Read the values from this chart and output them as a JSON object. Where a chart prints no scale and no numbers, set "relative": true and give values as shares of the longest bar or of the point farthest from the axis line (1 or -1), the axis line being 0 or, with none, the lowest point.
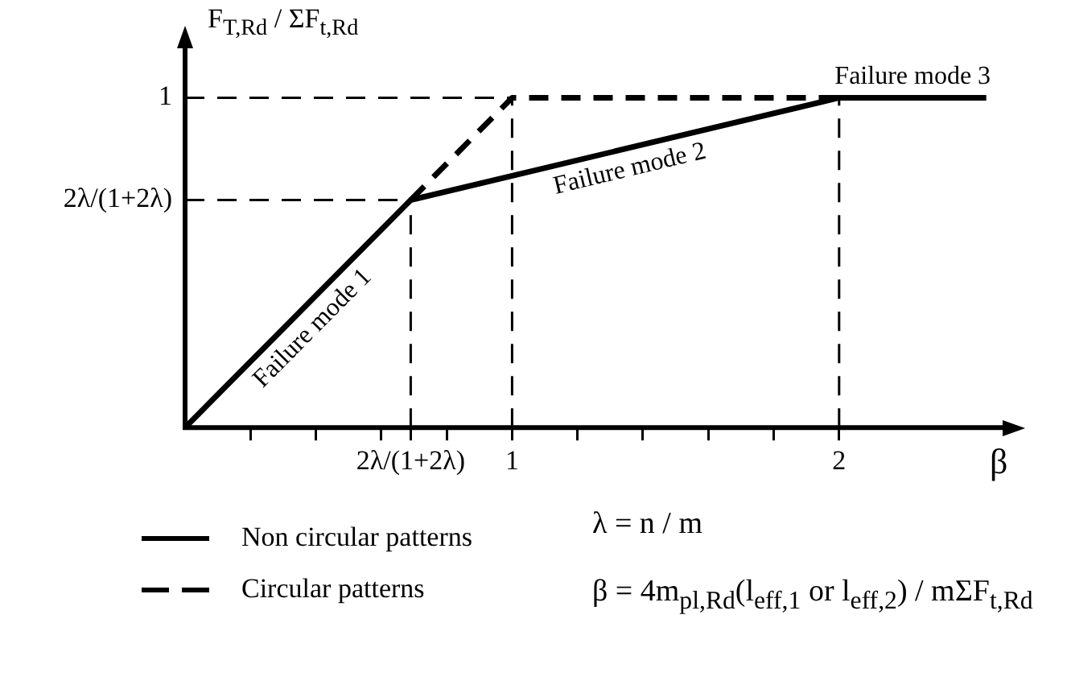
{
  "chart_data": {
    "type": "line",
    "xlabel": "β",
    "ylabel": "F$_{T,Rd}$ / ΣF$_{t,Rd}$",
    "xlim": [
      0,
      2.5
    ],
    "relative": true,
    "xticks": [
      {
        "value": 0.2,
        "label": null
      },
      {
        "value": 0.4,
        "label": null
      },
      {
        "value": 0.6,
        "label": null
      },
      {
        "value": 0.69,
        "label": "2λ/(1+2λ)"
      },
      {
        "value": 0.8,
        "label": null
      },
      1,
      {
        "value": 1.2,
        "label": null
      },
      {
        "value": 1.4,
        "label": null
      },
      {
        "value": 1.6,
        "label": null
      },
      {
        "value": 1.8,
        "label": null
      },
      2
    ],
    "series": [
      {
        "name": "Non circular patterns",
        "color": "#000000",
        "line_style": "solid",
        "x": [
          0,
          0.69,
          2,
          2.45
        ],
        "values": [
          0,
          0.69,
          1,
          1
        ]
      },
      {
        "name": "Circular patterns",
        "color": "#000000",
        "line_style": "dashed",
        "x": [
          0.69,
          1,
          2
        ],
        "values": [
          0.69,
          1,
          1
        ]
      }
    ],
    "ref_lines": [
      {
        "axis": "x",
        "value": 0.69,
        "label": null,
        "color": "#000000",
        "line_style": "dashed"
      },
      {
        "axis": "x",
        "value": 1,
        "label": null,
        "color": "#000000",
        "line_style": "dashed"
      },
      {
        "axis": "x",
        "value": 2,
        "label": null,
        "color": "#000000",
        "line_style": "dashed"
      },
      {
        "axis": "y",
        "value": 0.69,
        "label": "2λ/(1+2λ)",
        "color": "#000000",
        "line_style": "dashed"
      },
      {
        "axis": "y",
        "value": 1,
        "label": "1",
        "color": "#000000",
        "line_style": "dashed"
      }
    ],
    "annotations": [
      "Failure mode 1",
      "Failure mode 2",
      "Failure mode 3",
      "λ = n / m",
      "β = 4m$_{pl,Rd}$(l$_{eff,1}$ or l$_{eff,2}$) / mΣF$_{t,Rd}$"
    ],
    "grid": false,
    "legend": "bottom left",
    "marker": "none"
  }
}
